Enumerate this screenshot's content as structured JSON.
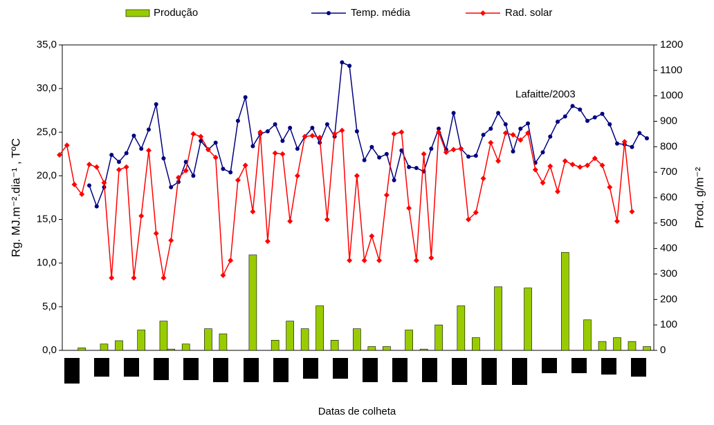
{
  "chart_data": {
    "type": "combo",
    "annotation": "Lafaitte/2003",
    "x_label": "Datas de colheta",
    "y_label": "Rg. MJ.m⁻².dia⁻¹ ,   TºC",
    "y2_label": "Prod. g/m⁻²",
    "categories": [
      null,
      null,
      null,
      null,
      null,
      null,
      null,
      null,
      null,
      null,
      null,
      null,
      null,
      null,
      null,
      null,
      null,
      null,
      null,
      null,
      null,
      null,
      null,
      null,
      null,
      null,
      null,
      null,
      null,
      null,
      null,
      null,
      null,
      null,
      null,
      null,
      null,
      null,
      null,
      null,
      null,
      null,
      null,
      null,
      null,
      null,
      null,
      null,
      null,
      null,
      null,
      null,
      null,
      null,
      null,
      null,
      null,
      null,
      null,
      null,
      null,
      null,
      null,
      null,
      null,
      null,
      null,
      null,
      null,
      null,
      null,
      null,
      null,
      null,
      null,
      null,
      null,
      null,
      null,
      null
    ],
    "ylim": [
      0,
      35
    ],
    "yticks": [
      {
        "value": 0,
        "label": "0,0"
      },
      {
        "value": 5,
        "label": "5,0"
      },
      {
        "value": 10,
        "label": "10,0"
      },
      {
        "value": 15,
        "label": "15,0"
      },
      {
        "value": 20,
        "label": "20,0"
      },
      {
        "value": 25,
        "label": "25,0"
      },
      {
        "value": 30,
        "label": "30,0"
      },
      {
        "value": 35,
        "label": "35,0"
      }
    ],
    "y2lim": [
      0,
      1200
    ],
    "y2ticks": [
      0,
      100,
      200,
      300,
      400,
      500,
      600,
      700,
      800,
      900,
      1000,
      1100,
      1200
    ],
    "series": [
      {
        "name": "Produção",
        "type": "bar",
        "axis": "y2",
        "color": "#99cc00",
        "values": [
          null,
          null,
          null,
          10,
          null,
          null,
          25,
          null,
          38,
          null,
          null,
          80,
          null,
          null,
          115,
          5,
          null,
          25,
          null,
          null,
          85,
          null,
          65,
          null,
          null,
          null,
          375,
          null,
          null,
          40,
          null,
          115,
          null,
          85,
          null,
          175,
          null,
          40,
          null,
          null,
          85,
          null,
          15,
          null,
          15,
          null,
          null,
          80,
          null,
          5,
          null,
          100,
          null,
          null,
          175,
          null,
          50,
          null,
          null,
          250,
          null,
          null,
          null,
          245,
          null,
          null,
          null,
          null,
          385,
          null,
          null,
          120,
          null,
          35,
          null,
          50,
          null,
          35,
          null,
          15
        ]
      },
      {
        "name": "Temp. média",
        "type": "line",
        "marker": "circle",
        "color": "#000080",
        "values": [
          null,
          null,
          null,
          null,
          18.9,
          16.5,
          18.7,
          22.4,
          21.6,
          22.6,
          24.6,
          23.1,
          25.3,
          28.2,
          22,
          18.7,
          19.3,
          21.6,
          20,
          24,
          23,
          23.8,
          20.8,
          20.4,
          26.3,
          29,
          23.4,
          24.8,
          25.1,
          25.9,
          24,
          25.5,
          23.1,
          24.5,
          25.5,
          23.8,
          25.9,
          24.5,
          33,
          32.6,
          25.1,
          21.8,
          23.3,
          22.1,
          22.5,
          19.5,
          22.9,
          21,
          20.9,
          20.5,
          23.1,
          25.4,
          23,
          27.2,
          23.1,
          22.2,
          22.3,
          24.7,
          25.4,
          27.2,
          25.9,
          22.8,
          25.4,
          26,
          21.5,
          22.7,
          24.5,
          26.2,
          26.8,
          28,
          27.6,
          26.3,
          26.7,
          27.1,
          25.9,
          23.7,
          23.6,
          23.3,
          24.9,
          24.3
        ]
      },
      {
        "name": "Rad. solar",
        "type": "line",
        "marker": "diamond",
        "color": "#ff0000",
        "values": [
          22.4,
          23.5,
          19,
          17.9,
          21.3,
          21,
          19.2,
          8.3,
          20.7,
          21,
          8.3,
          15.4,
          22.9,
          13.4,
          8.3,
          12.6,
          19.8,
          20.6,
          24.8,
          24.5,
          23,
          22.1,
          8.6,
          10.3,
          19.5,
          21.2,
          15.9,
          25,
          12.5,
          22.6,
          22.5,
          14.8,
          20,
          24.5,
          24.6,
          24.4,
          15,
          24.8,
          25.2,
          10.3,
          20,
          10.3,
          13.1,
          10.3,
          17.8,
          24.8,
          25,
          16.3,
          10.3,
          22.5,
          10.6,
          25,
          22.7,
          23,
          23.1,
          15,
          15.8,
          19.7,
          23.8,
          21.7,
          24.9,
          24.7,
          24.1,
          24.9,
          20.7,
          19.2,
          21.1,
          18.2,
          21.7,
          21.3,
          21,
          21.2,
          22,
          21.2,
          18.7,
          14.8,
          23.9,
          15.9,
          null,
          null
        ]
      }
    ]
  }
}
